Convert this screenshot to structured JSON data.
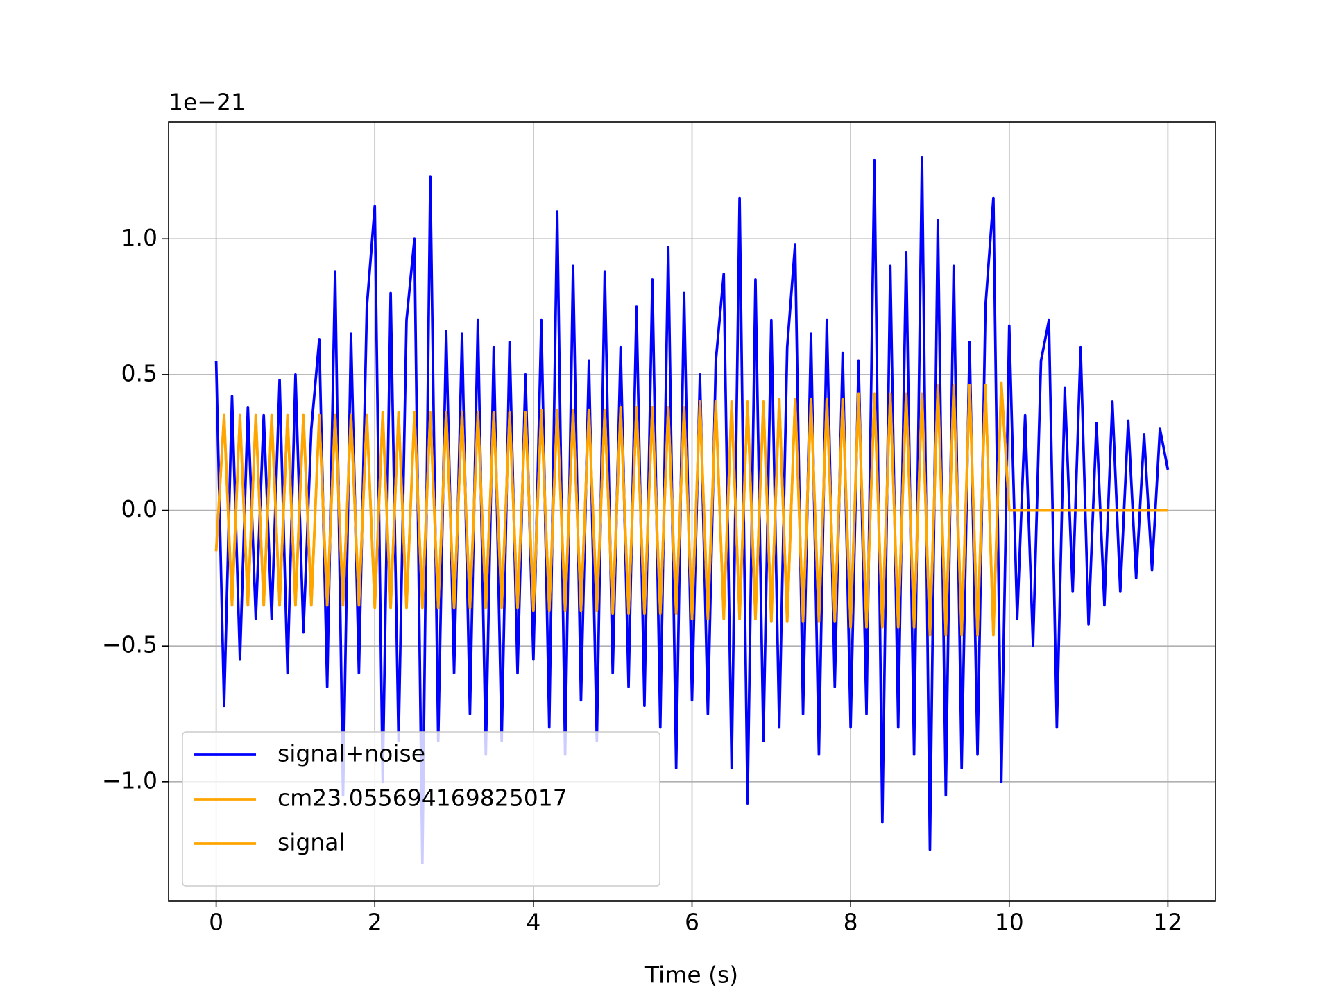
{
  "chart_data": {
    "type": "line",
    "offset_label": "1e−21",
    "xlabel": "Time (s)",
    "x": [
      0,
      0.1,
      0.2,
      0.3,
      0.4,
      0.5,
      0.6,
      0.7,
      0.8,
      0.9,
      1,
      1.1,
      1.2,
      1.3,
      1.4,
      1.5,
      1.6,
      1.7,
      1.8,
      1.9,
      2,
      2.1,
      2.2,
      2.3,
      2.4,
      2.5,
      2.6,
      2.7,
      2.8,
      2.9,
      3,
      3.1,
      3.2,
      3.3,
      3.4,
      3.5,
      3.6,
      3.7,
      3.8,
      3.9,
      4,
      4.1,
      4.2,
      4.3,
      4.4,
      4.5,
      4.6,
      4.7,
      4.8,
      4.9,
      5,
      5.1,
      5.2,
      5.3,
      5.4,
      5.5,
      5.6,
      5.7,
      5.8,
      5.9,
      6,
      6.1,
      6.2,
      6.3,
      6.4,
      6.5,
      6.6,
      6.7,
      6.8,
      6.9,
      7,
      7.1,
      7.2,
      7.3,
      7.4,
      7.5,
      7.6,
      7.7,
      7.8,
      7.9,
      8,
      8.1,
      8.2,
      8.3,
      8.4,
      8.5,
      8.6,
      8.7,
      8.8,
      8.9,
      9,
      9.1,
      9.2,
      9.3,
      9.4,
      9.5,
      9.6,
      9.7,
      9.8,
      9.9,
      10,
      10.1,
      10.2,
      10.3,
      10.4,
      10.5,
      10.6,
      10.7,
      10.8,
      10.9,
      11,
      11.1,
      11.2,
      11.3,
      11.4,
      11.5,
      11.6,
      11.7,
      11.8,
      11.9,
      12
    ],
    "series": [
      {
        "name": "signal+noise",
        "color": "#0000ff",
        "values": [
          0.55,
          -0.72,
          0.42,
          -0.55,
          0.38,
          -0.4,
          0.35,
          -0.4,
          0.48,
          -0.6,
          0.5,
          -0.45,
          0.3,
          0.63,
          -0.65,
          0.88,
          -1.05,
          0.65,
          -0.6,
          0.75,
          1.12,
          -1.0,
          0.8,
          -0.85,
          0.7,
          1.0,
          -1.3,
          1.23,
          -0.85,
          0.66,
          -0.6,
          0.65,
          -0.75,
          0.7,
          -0.9,
          0.6,
          -0.85,
          0.62,
          -0.6,
          0.5,
          -0.55,
          0.7,
          -0.8,
          1.1,
          -0.9,
          0.9,
          -0.7,
          0.55,
          -0.85,
          0.88,
          -0.6,
          0.6,
          -0.65,
          0.75,
          -0.72,
          0.85,
          -0.8,
          0.97,
          -0.95,
          0.8,
          -0.7,
          0.5,
          -0.75,
          0.55,
          0.87,
          -0.95,
          1.15,
          -1.08,
          0.85,
          -0.85,
          0.7,
          -0.8,
          0.6,
          0.98,
          -0.75,
          0.65,
          -0.9,
          0.7,
          -0.65,
          0.58,
          -0.8,
          0.55,
          -0.75,
          1.29,
          -1.15,
          0.9,
          -0.8,
          0.95,
          -0.9,
          1.3,
          -1.25,
          1.07,
          -1.05,
          0.9,
          -0.95,
          0.62,
          -0.9,
          0.75,
          1.15,
          -1.0,
          0.68,
          -0.4,
          0.35,
          -0.5,
          0.55,
          0.7,
          -0.8,
          0.45,
          -0.3,
          0.6,
          -0.42,
          0.32,
          -0.35,
          0.4,
          -0.3,
          0.33,
          -0.25,
          0.28,
          -0.22,
          0.3,
          0.15
        ]
      },
      {
        "name": "cm23.055694169825017",
        "color": "#ffa500",
        "values": [
          -0.15,
          0.35,
          -0.35,
          0.35,
          -0.35,
          0.35,
          -0.35,
          0.35,
          -0.35,
          0.35,
          -0.35,
          0.35,
          -0.35,
          0.35,
          -0.35,
          0.35,
          -0.35,
          0.35,
          -0.35,
          0.35,
          -0.36,
          0.36,
          -0.36,
          0.36,
          -0.36,
          0.36,
          -0.36,
          0.36,
          -0.36,
          0.36,
          -0.36,
          0.36,
          -0.36,
          0.36,
          -0.36,
          0.36,
          -0.36,
          0.36,
          -0.36,
          0.36,
          -0.37,
          0.37,
          -0.37,
          0.37,
          -0.37,
          0.37,
          -0.37,
          0.37,
          -0.37,
          0.37,
          -0.38,
          0.38,
          -0.38,
          0.38,
          -0.38,
          0.38,
          -0.38,
          0.38,
          -0.38,
          0.38,
          -0.4,
          0.4,
          -0.4,
          0.4,
          -0.4,
          0.4,
          -0.4,
          0.4,
          -0.4,
          0.4,
          -0.41,
          0.41,
          -0.41,
          0.41,
          -0.41,
          0.41,
          -0.41,
          0.41,
          -0.41,
          0.41,
          -0.43,
          0.43,
          -0.43,
          0.43,
          -0.43,
          0.43,
          -0.43,
          0.43,
          -0.43,
          0.43,
          -0.46,
          0.46,
          -0.46,
          0.46,
          -0.46,
          0.46,
          -0.46,
          0.46,
          -0.46,
          0.47,
          0,
          0,
          0,
          0,
          0,
          0,
          0,
          0,
          0,
          0,
          0,
          0,
          0,
          0,
          0,
          0,
          0,
          0,
          0,
          0,
          0
        ]
      },
      {
        "name": "signal",
        "color": "#ffa500",
        "values": [
          -0.15,
          0.35,
          -0.35,
          0.35,
          -0.35,
          0.35,
          -0.35,
          0.35,
          -0.35,
          0.35,
          -0.35,
          0.35,
          -0.35,
          0.35,
          -0.35,
          0.35,
          -0.35,
          0.35,
          -0.35,
          0.35,
          -0.36,
          0.36,
          -0.36,
          0.36,
          -0.36,
          0.36,
          -0.36,
          0.36,
          -0.36,
          0.36,
          -0.36,
          0.36,
          -0.36,
          0.36,
          -0.36,
          0.36,
          -0.36,
          0.36,
          -0.36,
          0.36,
          -0.37,
          0.37,
          -0.37,
          0.37,
          -0.37,
          0.37,
          -0.37,
          0.37,
          -0.37,
          0.37,
          -0.38,
          0.38,
          -0.38,
          0.38,
          -0.38,
          0.38,
          -0.38,
          0.38,
          -0.38,
          0.38,
          -0.4,
          0.4,
          -0.4,
          0.4,
          -0.4,
          0.4,
          -0.4,
          0.4,
          -0.4,
          0.4,
          -0.41,
          0.41,
          -0.41,
          0.41,
          -0.41,
          0.41,
          -0.41,
          0.41,
          -0.41,
          0.41,
          -0.43,
          0.43,
          -0.43,
          0.43,
          -0.43,
          0.43,
          -0.43,
          0.43,
          -0.43,
          0.43,
          -0.46,
          0.46,
          -0.46,
          0.46,
          -0.46,
          0.46,
          -0.46,
          0.46,
          -0.46,
          0.47,
          0,
          0,
          0,
          0,
          0,
          0,
          0,
          0,
          0,
          0,
          0,
          0,
          0,
          0,
          0,
          0,
          0,
          0,
          0,
          0,
          0
        ]
      }
    ],
    "xlim": [
      -0.6,
      12.6
    ],
    "xticks": [
      0,
      2,
      4,
      6,
      8,
      10,
      12
    ],
    "ylim": [
      -1.44,
      1.43
    ],
    "yticks": [
      {
        "value": -1,
        "label": "−1.0"
      },
      {
        "value": -0.5,
        "label": "−0.5"
      },
      {
        "value": 0,
        "label": "0.0"
      },
      {
        "value": 0.5,
        "label": "0.5"
      },
      {
        "value": 1,
        "label": "1.0"
      }
    ],
    "grid": true,
    "legend": "lower left"
  }
}
